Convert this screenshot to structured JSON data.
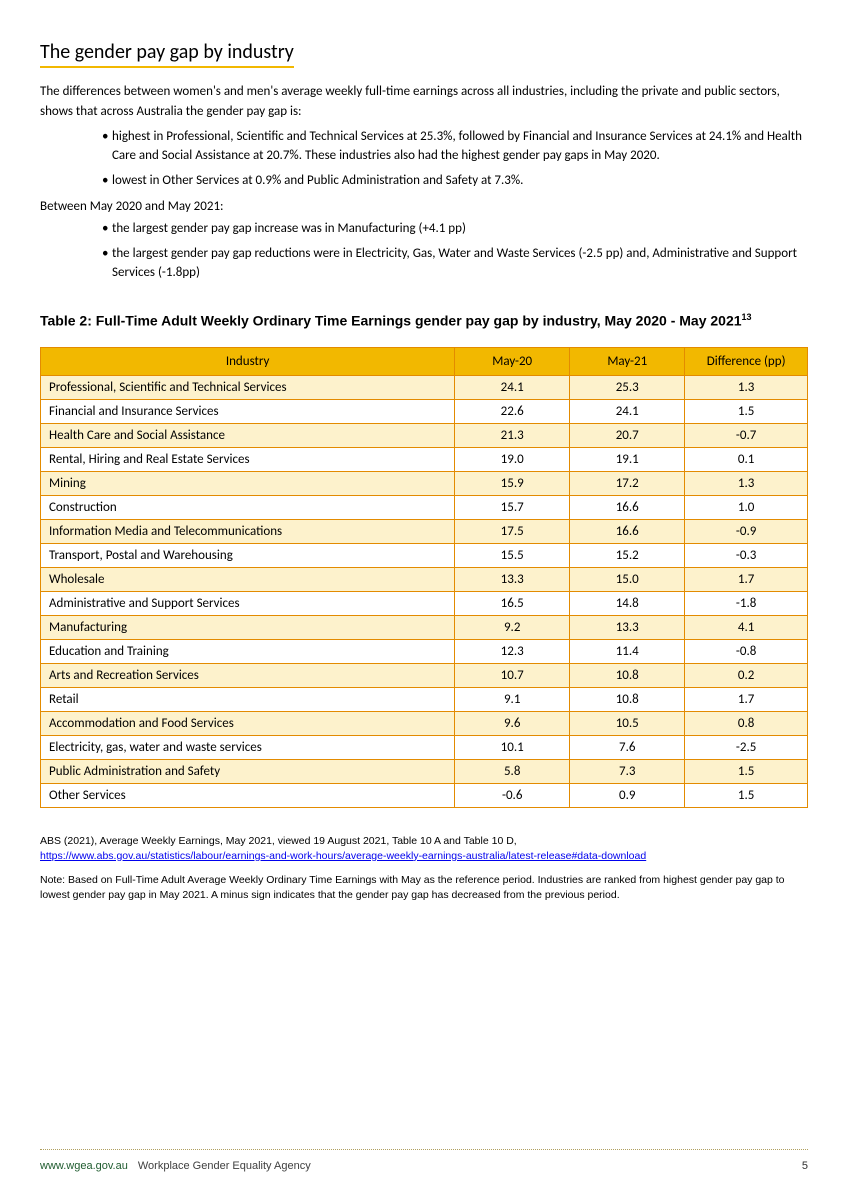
{
  "heading": "The gender pay gap by industry",
  "intro": "The differences between women's and men's average weekly full-time earnings across all industries, including the private and public sectors, shows that across Australia the gender pay gap is:",
  "bullets1": [
    "highest in Professional, Scientific and Technical Services at 25.3%, followed by Financial and Insurance Services at 24.1% and Health Care and Social Assistance at 20.7%. These industries also had the highest gender pay gaps in May 2020.",
    "lowest in Other Services at 0.9% and Public Administration and Safety at 7.3%."
  ],
  "between_label": "Between May 2020 and May 2021:",
  "bullets2": [
    "the largest gender pay gap increase was in Manufacturing (+4.1 pp)",
    "the largest gender pay gap reductions were in Electricity, Gas, Water and Waste Services (-2.5 pp) and, Administrative and Support Services (-1.8pp)"
  ],
  "table_title": "Table 2: Full-Time Adult Weekly Ordinary Time Earnings gender pay gap by industry, May 2020 - May 2021",
  "table_title_sup": "13",
  "table": {
    "type": "table",
    "header_bg": "#f2b800",
    "border_color": "#e38b00",
    "row_alt_bg": "#fdf2cc",
    "row_bg": "#ffffff",
    "columns": [
      "Industry",
      "May-20",
      "May-21",
      "Difference (pp)"
    ],
    "col_align": [
      "left",
      "center",
      "center",
      "center"
    ],
    "rows": [
      [
        "Professional, Scientific and Technical Services",
        "24.1",
        "25.3",
        "1.3"
      ],
      [
        "Financial and Insurance Services",
        "22.6",
        "24.1",
        "1.5"
      ],
      [
        "Health Care and Social Assistance",
        "21.3",
        "20.7",
        "-0.7"
      ],
      [
        "Rental, Hiring and Real Estate Services",
        "19.0",
        "19.1",
        "0.1"
      ],
      [
        "Mining",
        "15.9",
        "17.2",
        "1.3"
      ],
      [
        "Construction",
        "15.7",
        "16.6",
        "1.0"
      ],
      [
        "Information Media and Telecommunications",
        "17.5",
        "16.6",
        "-0.9"
      ],
      [
        "Transport, Postal and Warehousing",
        "15.5",
        "15.2",
        "-0.3"
      ],
      [
        "Wholesale",
        "13.3",
        "15.0",
        "1.7"
      ],
      [
        "Administrative and Support Services",
        "16.5",
        "14.8",
        "-1.8"
      ],
      [
        "Manufacturing",
        "9.2",
        "13.3",
        "4.1"
      ],
      [
        "Education and Training",
        "12.3",
        "11.4",
        "-0.8"
      ],
      [
        "Arts and Recreation Services",
        "10.7",
        "10.8",
        "0.2"
      ],
      [
        "Retail",
        "9.1",
        "10.8",
        "1.7"
      ],
      [
        "Accommodation and Food Services",
        "9.6",
        "10.5",
        "0.8"
      ],
      [
        "Electricity, gas, water and waste services",
        "10.1",
        "7.6",
        "-2.5"
      ],
      [
        "Public Administration and Safety",
        "5.8",
        "7.3",
        "1.5"
      ],
      [
        "Other Services",
        "-0.6",
        "0.9",
        "1.5"
      ]
    ]
  },
  "source_prefix": "ABS (2021), Average Weekly Earnings, May 2021, viewed 19 August 2021, Table 10 A and Table 10 D,",
  "source_link": "https://www.abs.gov.au/statistics/labour/earnings-and-work-hours/average-weekly-earnings-australia/latest-release#data-download",
  "note": "Note: Based on Full-Time Adult Average Weekly Ordinary Time Earnings with May as the reference period. Industries are ranked from highest gender pay gap to lowest gender pay gap in May 2021. A minus sign indicates that the gender pay gap has decreased from the previous period.",
  "footer": {
    "url": "www.wgea.gov.au",
    "agency": "Workplace Gender Equality Agency",
    "page": "5"
  },
  "colors": {
    "accent": "#f2b800",
    "table_border": "#e38b00",
    "link": "#0000ee",
    "footer_url": "#1f5c2f"
  }
}
